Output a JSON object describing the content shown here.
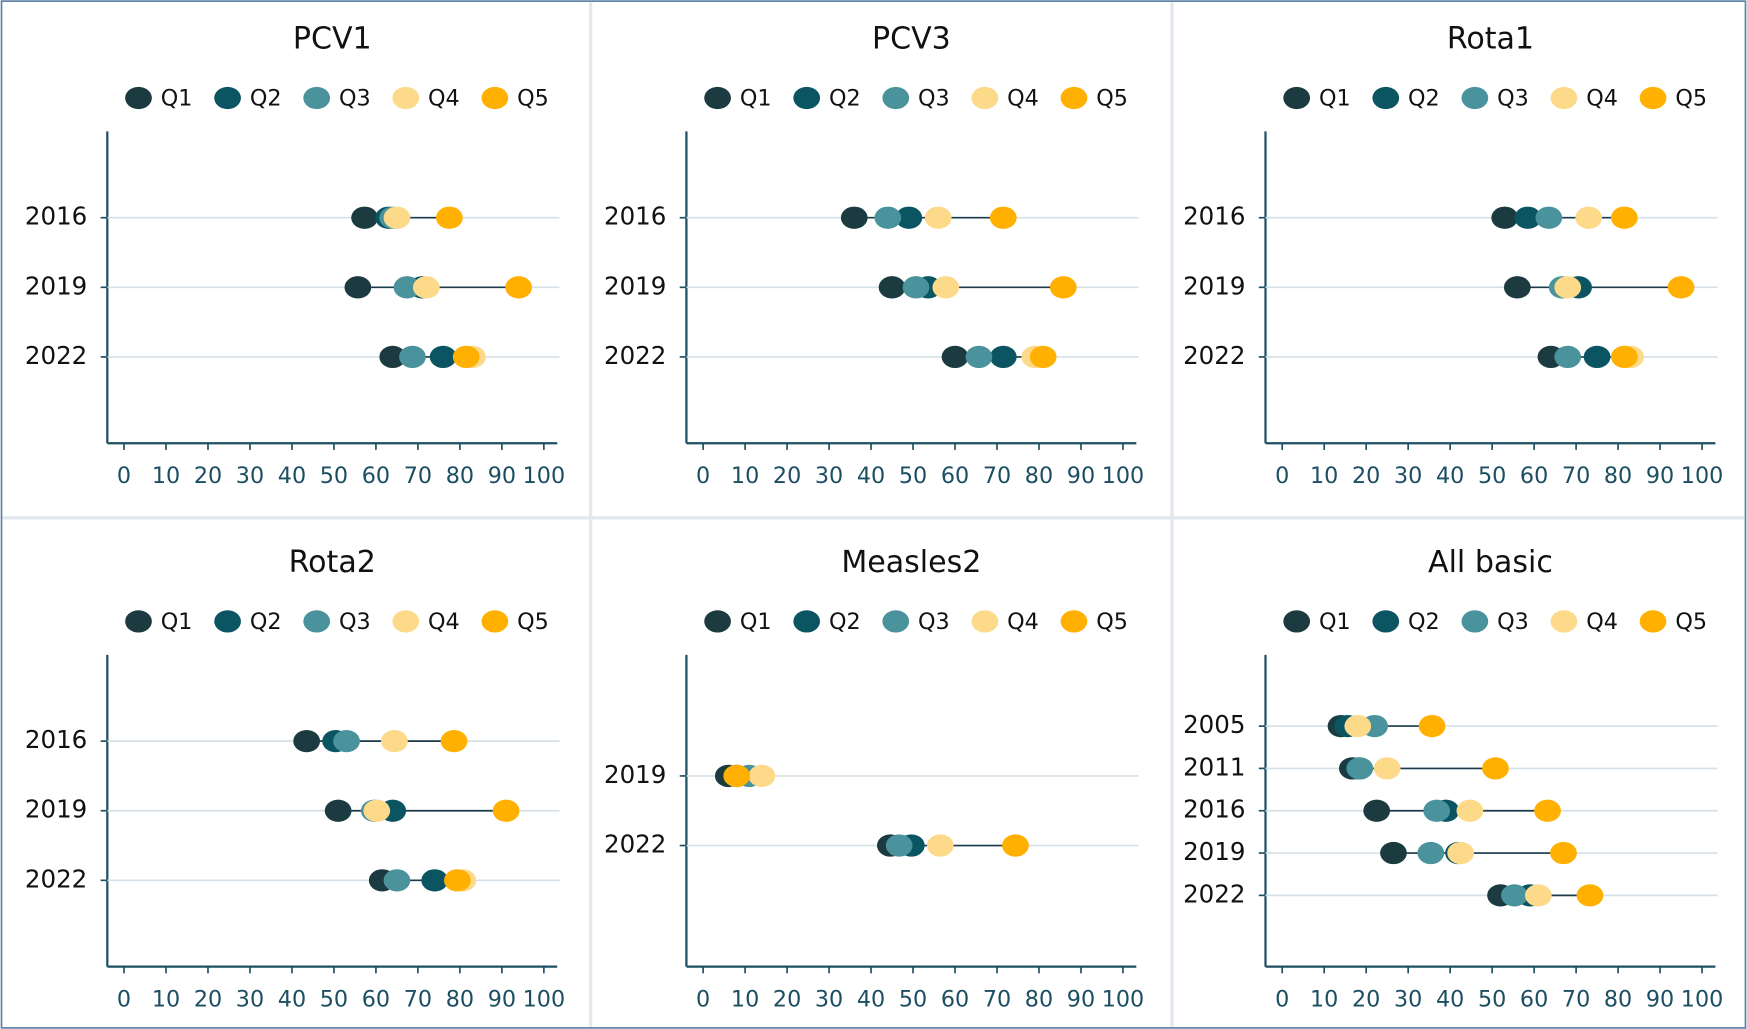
{
  "chart_data": [
    {
      "type": "dot",
      "title": "PCV1",
      "categories": [
        "2016",
        "2019",
        "2022"
      ],
      "series": [
        {
          "name": "Q1",
          "color": "#1b3b40",
          "values": [
            57.3,
            55.7,
            64
          ]
        },
        {
          "name": "Q2",
          "color": "#0b5563",
          "values": [
            63,
            71,
            76
          ]
        },
        {
          "name": "Q3",
          "color": "#4a929c",
          "values": [
            64,
            67.4,
            68.7
          ]
        },
        {
          "name": "Q4",
          "color": "#fdd98a",
          "values": [
            65,
            72,
            83
          ]
        },
        {
          "name": "Q5",
          "color": "#ffb000",
          "values": [
            77.5,
            94,
            81.5
          ]
        }
      ],
      "xlim": [
        0,
        100
      ],
      "xticks": [
        0,
        10,
        20,
        30,
        40,
        50,
        60,
        70,
        80,
        90,
        100
      ],
      "grid": true,
      "legend": "top"
    },
    {
      "type": "dot",
      "title": "PCV3",
      "categories": [
        "2016",
        "2019",
        "2022"
      ],
      "series": [
        {
          "name": "Q1",
          "color": "#1b3b40",
          "values": [
            36,
            45,
            60
          ]
        },
        {
          "name": "Q2",
          "color": "#0b5563",
          "values": [
            49,
            53.6,
            71.5
          ]
        },
        {
          "name": "Q3",
          "color": "#4a929c",
          "values": [
            44,
            50.7,
            65.7
          ]
        },
        {
          "name": "Q4",
          "color": "#fdd98a",
          "values": [
            56,
            57.8,
            79
          ]
        },
        {
          "name": "Q5",
          "color": "#ffb000",
          "values": [
            71.5,
            85.8,
            81
          ]
        }
      ],
      "xlim": [
        0,
        100
      ],
      "xticks": [
        0,
        10,
        20,
        30,
        40,
        50,
        60,
        70,
        80,
        90,
        100
      ],
      "grid": true,
      "legend": "top"
    },
    {
      "type": "dot",
      "title": "Rota1",
      "categories": [
        "2016",
        "2019",
        "2022"
      ],
      "series": [
        {
          "name": "Q1",
          "color": "#1b3b40",
          "values": [
            53,
            56,
            64
          ]
        },
        {
          "name": "Q2",
          "color": "#0b5563",
          "values": [
            58.5,
            70.6,
            75
          ]
        },
        {
          "name": "Q3",
          "color": "#4a929c",
          "values": [
            63.5,
            66.7,
            68
          ]
        },
        {
          "name": "Q4",
          "color": "#fdd98a",
          "values": [
            73,
            68,
            83
          ]
        },
        {
          "name": "Q5",
          "color": "#ffb000",
          "values": [
            81.5,
            95,
            81.5
          ]
        }
      ],
      "xlim": [
        0,
        100
      ],
      "xticks": [
        0,
        10,
        20,
        30,
        40,
        50,
        60,
        70,
        80,
        90,
        100
      ],
      "grid": true,
      "legend": "top"
    },
    {
      "type": "dot",
      "title": "Rota2",
      "categories": [
        "2016",
        "2019",
        "2022"
      ],
      "series": [
        {
          "name": "Q1",
          "color": "#1b3b40",
          "values": [
            43.5,
            51,
            61.5
          ]
        },
        {
          "name": "Q2",
          "color": "#0b5563",
          "values": [
            50.4,
            64,
            74
          ]
        },
        {
          "name": "Q3",
          "color": "#4a929c",
          "values": [
            53,
            59.6,
            65
          ]
        },
        {
          "name": "Q4",
          "color": "#fdd98a",
          "values": [
            64.4,
            60.2,
            80.7
          ]
        },
        {
          "name": "Q5",
          "color": "#ffb000",
          "values": [
            78.6,
            91,
            79.4
          ]
        }
      ],
      "xlim": [
        0,
        100
      ],
      "xticks": [
        0,
        10,
        20,
        30,
        40,
        50,
        60,
        70,
        80,
        90,
        100
      ],
      "grid": true,
      "legend": "top"
    },
    {
      "type": "dot",
      "title": "Measles2",
      "categories": [
        "2019",
        "2022"
      ],
      "series": [
        {
          "name": "Q1",
          "color": "#1b3b40",
          "values": [
            6,
            44.6
          ]
        },
        {
          "name": "Q2",
          "color": "#0b5563",
          "values": [
            8,
            49.6
          ]
        },
        {
          "name": "Q3",
          "color": "#4a929c",
          "values": [
            11,
            46.7
          ]
        },
        {
          "name": "Q4",
          "color": "#fdd98a",
          "values": [
            14,
            56.5
          ]
        },
        {
          "name": "Q5",
          "color": "#ffb000",
          "values": [
            8,
            74.4
          ]
        }
      ],
      "xlim": [
        0,
        100
      ],
      "xticks": [
        0,
        10,
        20,
        30,
        40,
        50,
        60,
        70,
        80,
        90,
        100
      ],
      "grid": true,
      "legend": "top"
    },
    {
      "type": "dot",
      "title": "All basic",
      "categories": [
        "2005",
        "2011",
        "2016",
        "2019",
        "2022"
      ],
      "series": [
        {
          "name": "Q1",
          "color": "#1b3b40",
          "values": [
            14,
            16.7,
            22.5,
            26.5,
            52
          ]
        },
        {
          "name": "Q2",
          "color": "#0b5563",
          "values": [
            15.6,
            18.3,
            39,
            42,
            59
          ]
        },
        {
          "name": "Q3",
          "color": "#4a929c",
          "values": [
            22,
            18.5,
            36.8,
            35.4,
            55.3
          ]
        },
        {
          "name": "Q4",
          "color": "#fdd98a",
          "values": [
            18,
            25,
            44.7,
            42.5,
            61
          ]
        },
        {
          "name": "Q5",
          "color": "#ffb000",
          "values": [
            35.7,
            50.8,
            63.2,
            67,
            73.3
          ]
        }
      ],
      "xlim": [
        0,
        100
      ],
      "xticks": [
        0,
        10,
        20,
        30,
        40,
        50,
        60,
        70,
        80,
        90,
        100
      ],
      "grid": true,
      "legend": "top"
    }
  ]
}
